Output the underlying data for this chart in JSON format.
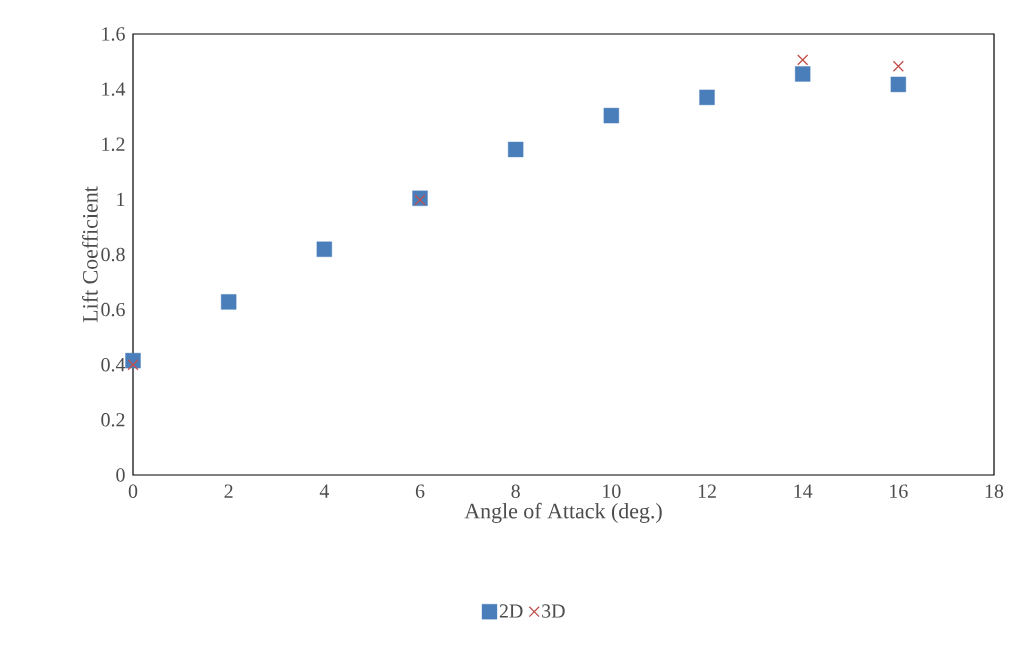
{
  "chart_data": {
    "type": "scatter",
    "xlabel": "Angle of Attack (deg.)",
    "ylabel": "Lift Coefficient",
    "xlim": [
      0,
      18
    ],
    "xticks": [
      0,
      2,
      4,
      6,
      8,
      10,
      12,
      14,
      16,
      18
    ],
    "ylim": [
      0,
      1.6
    ],
    "yticks": [
      0,
      0.2,
      0.4,
      0.6,
      0.8,
      1,
      1.2,
      1.4,
      1.6
    ],
    "grid": false,
    "legend": "bottom",
    "series": [
      {
        "name": "2D",
        "color": "#4a7ebb",
        "marker": "square",
        "x": [
          0,
          2,
          4,
          6,
          8,
          10,
          12,
          14,
          16
        ],
        "values": [
          0.415,
          0.628,
          0.819,
          1.004,
          1.181,
          1.304,
          1.37,
          1.455,
          1.417
        ]
      },
      {
        "name": "3D",
        "color": "#c0504d",
        "marker": "cross",
        "x": [
          0,
          6,
          14,
          16
        ],
        "values": [
          0.4,
          0.998,
          1.506,
          1.483
        ]
      }
    ]
  }
}
